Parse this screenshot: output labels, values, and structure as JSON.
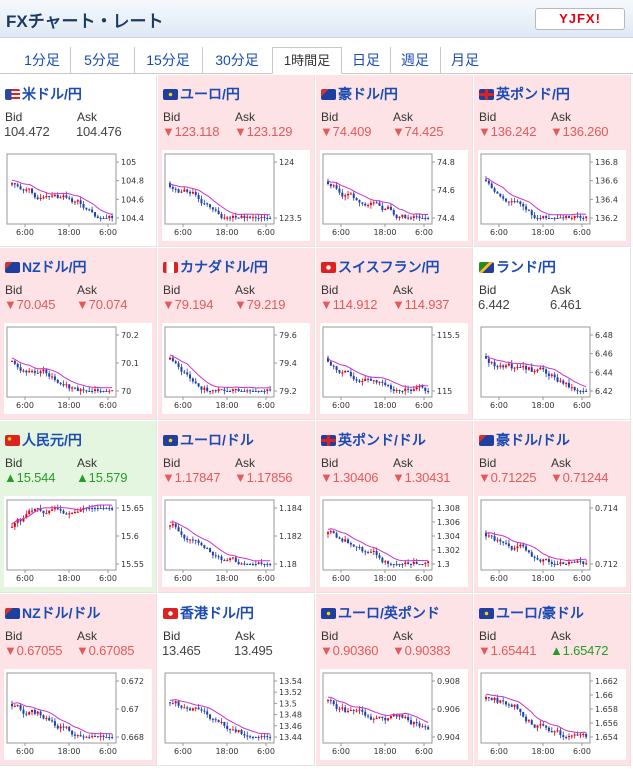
{
  "header": {
    "title": "FXチャート・レート",
    "logo_text": "YJFX!"
  },
  "tabs": [
    {
      "label": "1分足"
    },
    {
      "label": "5分足"
    },
    {
      "label": "15分足"
    },
    {
      "label": "30分足"
    },
    {
      "label": "1時間足",
      "active": true
    },
    {
      "label": "日足"
    },
    {
      "label": "週足"
    },
    {
      "label": "月足"
    }
  ],
  "labels": {
    "bid": "Bid",
    "ask": "Ask"
  },
  "colors": {
    "up": "#259c25",
    "down": "#e35a5a",
    "candle_up": "#e60012",
    "candle_down": "#1f3fb0",
    "ma": "#cc33cc",
    "link": "#1a4bb5"
  },
  "pairs": [
    {
      "name": "米ドル/円",
      "flag": "us",
      "bid": "104.472",
      "ask": "104.476",
      "bid_dir": "none",
      "ask_dir": "none",
      "ticks": [
        "105",
        "104.8",
        "104.6",
        "104.4"
      ],
      "x_ticks": [
        "6:00",
        "18:00",
        "6:00"
      ]
    },
    {
      "name": "ユーロ/円",
      "flag": "eu",
      "bid": "▼123.118",
      "ask": "▼123.129",
      "bid_dir": "down",
      "ask_dir": "down",
      "ticks": [
        "124",
        "123.5"
      ],
      "x_ticks": [
        "6:00",
        "18:00",
        "6:00"
      ]
    },
    {
      "name": "豪ドル/円",
      "flag": "au",
      "bid": "▼74.409",
      "ask": "▼74.425",
      "bid_dir": "down",
      "ask_dir": "down",
      "ticks": [
        "74.8",
        "74.6",
        "74.4"
      ],
      "x_ticks": [
        "6:00",
        "18:00",
        "6:00"
      ]
    },
    {
      "name": "英ポンド/円",
      "flag": "gb",
      "bid": "▼136.242",
      "ask": "▼136.260",
      "bid_dir": "down",
      "ask_dir": "down",
      "ticks": [
        "136.8",
        "136.6",
        "136.4",
        "136.2"
      ],
      "x_ticks": [
        "6:00",
        "18:00",
        "6:00"
      ]
    },
    {
      "name": "NZドル/円",
      "flag": "nz",
      "bid": "▼70.045",
      "ask": "▼70.074",
      "bid_dir": "down",
      "ask_dir": "down",
      "ticks": [
        "70.2",
        "70.1",
        "70"
      ],
      "x_ticks": [
        "6:00",
        "18:00",
        "6:00"
      ]
    },
    {
      "name": "カナダドル/円",
      "flag": "ca",
      "bid": "▼79.194",
      "ask": "▼79.219",
      "bid_dir": "down",
      "ask_dir": "down",
      "ticks": [
        "79.6",
        "79.4",
        "79.2"
      ],
      "x_ticks": [
        "6:00",
        "18:00",
        "6:00"
      ]
    },
    {
      "name": "スイスフラン/円",
      "flag": "ch",
      "bid": "▼114.912",
      "ask": "▼114.937",
      "bid_dir": "down",
      "ask_dir": "down",
      "ticks": [
        "115.5",
        "115"
      ],
      "x_ticks": [
        "6:00",
        "18:00",
        "6:00"
      ]
    },
    {
      "name": "ランド/円",
      "flag": "za",
      "bid": "6.442",
      "ask": "6.461",
      "bid_dir": "none",
      "ask_dir": "none",
      "ticks": [
        "6.48",
        "6.46",
        "6.44",
        "6.42"
      ],
      "x_ticks": [
        "6:00",
        "18:00",
        "6:00"
      ]
    },
    {
      "name": "人民元/円",
      "flag": "cn",
      "bid": "▲15.544",
      "ask": "▲15.579",
      "bid_dir": "up",
      "ask_dir": "up",
      "ticks": [
        "15.65",
        "15.6",
        "15.55"
      ],
      "x_ticks": [
        "6:00",
        "18:00",
        "6:00"
      ]
    },
    {
      "name": "ユーロ/ドル",
      "flag": "eu",
      "bid": "▼1.17847",
      "ask": "▼1.17856",
      "bid_dir": "down",
      "ask_dir": "down",
      "ticks": [
        "1.184",
        "1.182",
        "1.18"
      ],
      "x_ticks": [
        "6:00",
        "18:00",
        "6:00"
      ]
    },
    {
      "name": "英ポンド/ドル",
      "flag": "gb",
      "bid": "▼1.30406",
      "ask": "▼1.30431",
      "bid_dir": "down",
      "ask_dir": "down",
      "ticks": [
        "1.308",
        "1.306",
        "1.304",
        "1.302",
        "1.3"
      ],
      "x_ticks": [
        "6:00",
        "18:00",
        "6:00"
      ]
    },
    {
      "name": "豪ドル/ドル",
      "flag": "au",
      "bid": "▼0.71225",
      "ask": "▼0.71244",
      "bid_dir": "down",
      "ask_dir": "down",
      "ticks": [
        "0.714",
        "0.712"
      ],
      "x_ticks": [
        "6:00",
        "18:00",
        "6:00"
      ]
    },
    {
      "name": "NZドル/ドル",
      "flag": "nz",
      "bid": "▼0.67055",
      "ask": "▼0.67085",
      "bid_dir": "down",
      "ask_dir": "down",
      "ticks": [
        "0.672",
        "0.67",
        "0.668"
      ],
      "x_ticks": [
        "6:00",
        "18:00",
        "6:00"
      ]
    },
    {
      "name": "香港ドル/円",
      "flag": "hk",
      "bid": "13.465",
      "ask": "13.495",
      "bid_dir": "none",
      "ask_dir": "none",
      "ticks": [
        "13.54",
        "13.52",
        "13.5",
        "13.48",
        "13.46",
        "13.44"
      ],
      "x_ticks": [
        "6:00",
        "18:00",
        "6:00"
      ]
    },
    {
      "name": "ユーロ/英ポンド",
      "flag": "eu",
      "bid": "▼0.90360",
      "ask": "▼0.90383",
      "bid_dir": "down",
      "ask_dir": "down",
      "ticks": [
        "0.908",
        "0.906",
        "0.904"
      ],
      "x_ticks": [
        "6:00",
        "18:00",
        "6:00"
      ]
    },
    {
      "name": "ユーロ/豪ドル",
      "flag": "eu",
      "bid": "▼1.65441",
      "ask": "▲1.65472",
      "bid_dir": "down",
      "ask_dir": "up",
      "ticks": [
        "1.662",
        "1.66",
        "1.658",
        "1.656",
        "1.654"
      ],
      "x_ticks": [
        "6:00",
        "18:00",
        "6:00"
      ]
    }
  ]
}
